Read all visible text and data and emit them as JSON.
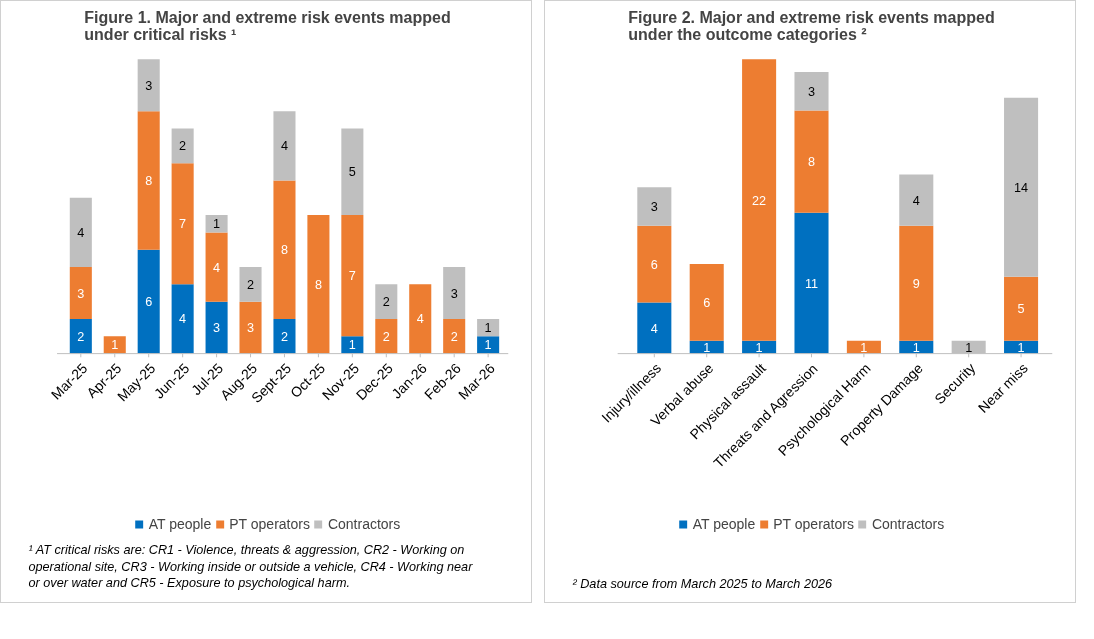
{
  "chart_data": [
    {
      "type": "bar",
      "title": "Figure 1. Major and extreme risk events mapped\nunder critical risks ¹",
      "stacked": true,
      "data_labels": true,
      "legend": "bottom",
      "grid": false,
      "categories": [
        "Mar-25",
        "Apr-25",
        "May-25",
        "Jun-25",
        "Jul-25",
        "Aug-25",
        "Sept-25",
        "Oct-25",
        "Nov-25",
        "Dec-25",
        "Jan-26",
        "Feb-26",
        "Mar-26"
      ],
      "series": [
        {
          "name": "AT people",
          "color": "#0070c0",
          "values": [
            2,
            null,
            6,
            4,
            3,
            null,
            2,
            null,
            1,
            null,
            null,
            null,
            1
          ]
        },
        {
          "name": "PT operators",
          "color": "#ed7d31",
          "values": [
            3,
            1,
            8,
            7,
            4,
            3,
            8,
            8,
            7,
            2,
            4,
            2,
            null
          ]
        },
        {
          "name": "Contractors",
          "color": "#bfbfbf",
          "values": [
            4,
            null,
            3,
            2,
            1,
            2,
            4,
            null,
            5,
            2,
            null,
            3,
            1
          ]
        }
      ],
      "annotations": [
        "¹ AT critical risks are: CR1 - Violence, threats & aggression, CR2 - Working on operational site, CR3 - Working inside or outside a vehicle, CR4 - Working near or over water and CR5 - Exposure to psychological harm."
      ]
    },
    {
      "type": "bar",
      "title": "Figure 2. Major and extreme risk events mapped\nunder the outcome categories ²",
      "stacked": true,
      "data_labels": true,
      "legend": "bottom",
      "grid": false,
      "categories": [
        "Injury/illness",
        "Verbal abuse",
        "Physical assault",
        "Threats and Agression",
        "Psychological Harm",
        "Property Damage",
        "Security",
        "Near miss"
      ],
      "series": [
        {
          "name": "AT people",
          "color": "#0070c0",
          "values": [
            4,
            1,
            1,
            11,
            null,
            1,
            null,
            1
          ]
        },
        {
          "name": "PT operators",
          "color": "#ed7d31",
          "values": [
            6,
            6,
            22,
            8,
            1,
            9,
            null,
            5
          ]
        },
        {
          "name": "Contractors",
          "color": "#bfbfbf",
          "values": [
            3,
            null,
            null,
            3,
            null,
            4,
            1,
            14
          ]
        }
      ],
      "annotations": [
        "² Data source from March 2025 to March 2026"
      ]
    }
  ]
}
